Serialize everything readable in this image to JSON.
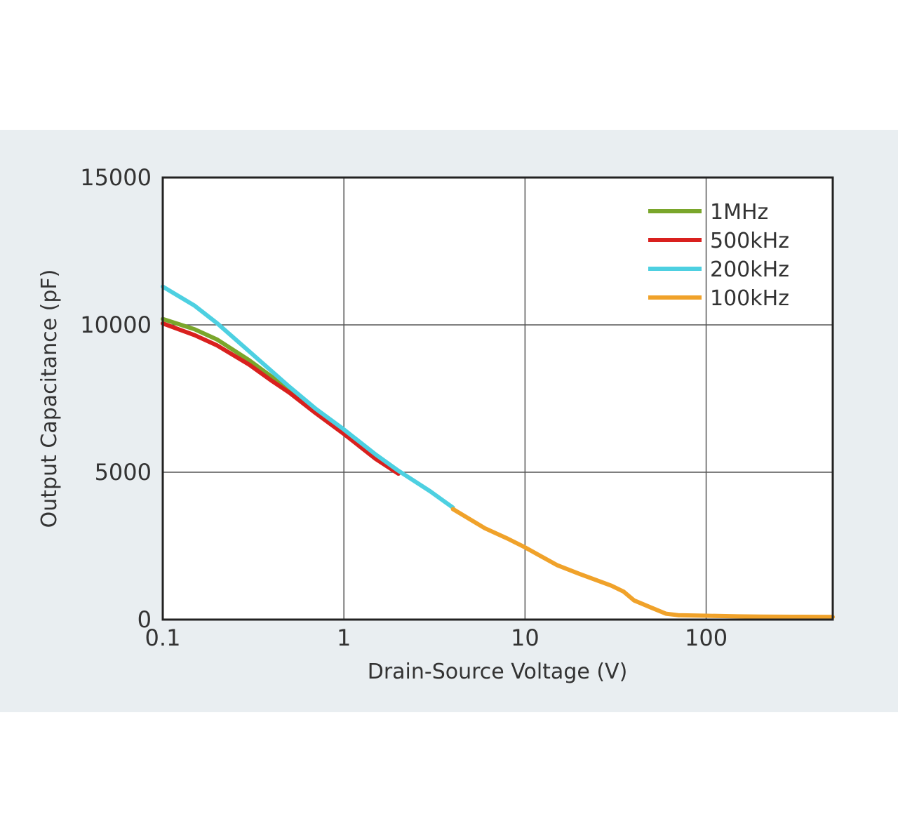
{
  "colors": {
    "band_background": "#e9eef1",
    "plot_background": "#ffffff",
    "grid": "#555555",
    "frame": "#222222",
    "text": "#333333"
  },
  "chart_data": {
    "type": "line",
    "xlabel": "Drain-Source Voltage (V)",
    "ylabel": "Output Capacitance (pF)",
    "x_scale": "log",
    "xlim": [
      0.1,
      500
    ],
    "ylim": [
      0,
      15000
    ],
    "x_ticks": [
      0.1,
      1,
      10,
      100
    ],
    "x_tick_labels": [
      "0.1",
      "1",
      "10",
      "100"
    ],
    "y_ticks": [
      0,
      5000,
      10000,
      15000
    ],
    "y_tick_labels": [
      "0",
      "5000",
      "10000",
      "15000"
    ],
    "grid": true,
    "legend_position": "top-right",
    "series": [
      {
        "name": "1MHz",
        "color": "#7aa62b",
        "x": [
          0.1,
          0.15,
          0.2,
          0.3,
          0.5,
          0.7,
          1
        ],
        "y": [
          10200,
          9850,
          9500,
          8800,
          7800,
          7050,
          6350
        ]
      },
      {
        "name": "500kHz",
        "color": "#d9201e",
        "x": [
          0.1,
          0.15,
          0.2,
          0.3,
          0.4,
          0.5,
          0.7,
          1,
          1.5,
          2
        ],
        "y": [
          10050,
          9650,
          9300,
          8650,
          8100,
          7700,
          7000,
          6300,
          5450,
          4950
        ]
      },
      {
        "name": "200kHz",
        "color": "#4dd0e1",
        "x": [
          0.1,
          0.15,
          0.2,
          0.3,
          0.5,
          0.7,
          1,
          1.5,
          2,
          3,
          4
        ],
        "y": [
          11300,
          10650,
          10050,
          9100,
          7900,
          7150,
          6450,
          5600,
          5050,
          4350,
          3800
        ]
      },
      {
        "name": "100kHz",
        "color": "#f0a22a",
        "x": [
          4,
          6,
          8,
          10,
          15,
          20,
          30,
          35,
          40,
          50,
          60,
          70,
          100,
          150,
          200,
          300,
          500
        ],
        "y": [
          3750,
          3100,
          2750,
          2450,
          1850,
          1550,
          1150,
          950,
          650,
          400,
          200,
          150,
          130,
          110,
          100,
          95,
          90
        ]
      }
    ]
  }
}
